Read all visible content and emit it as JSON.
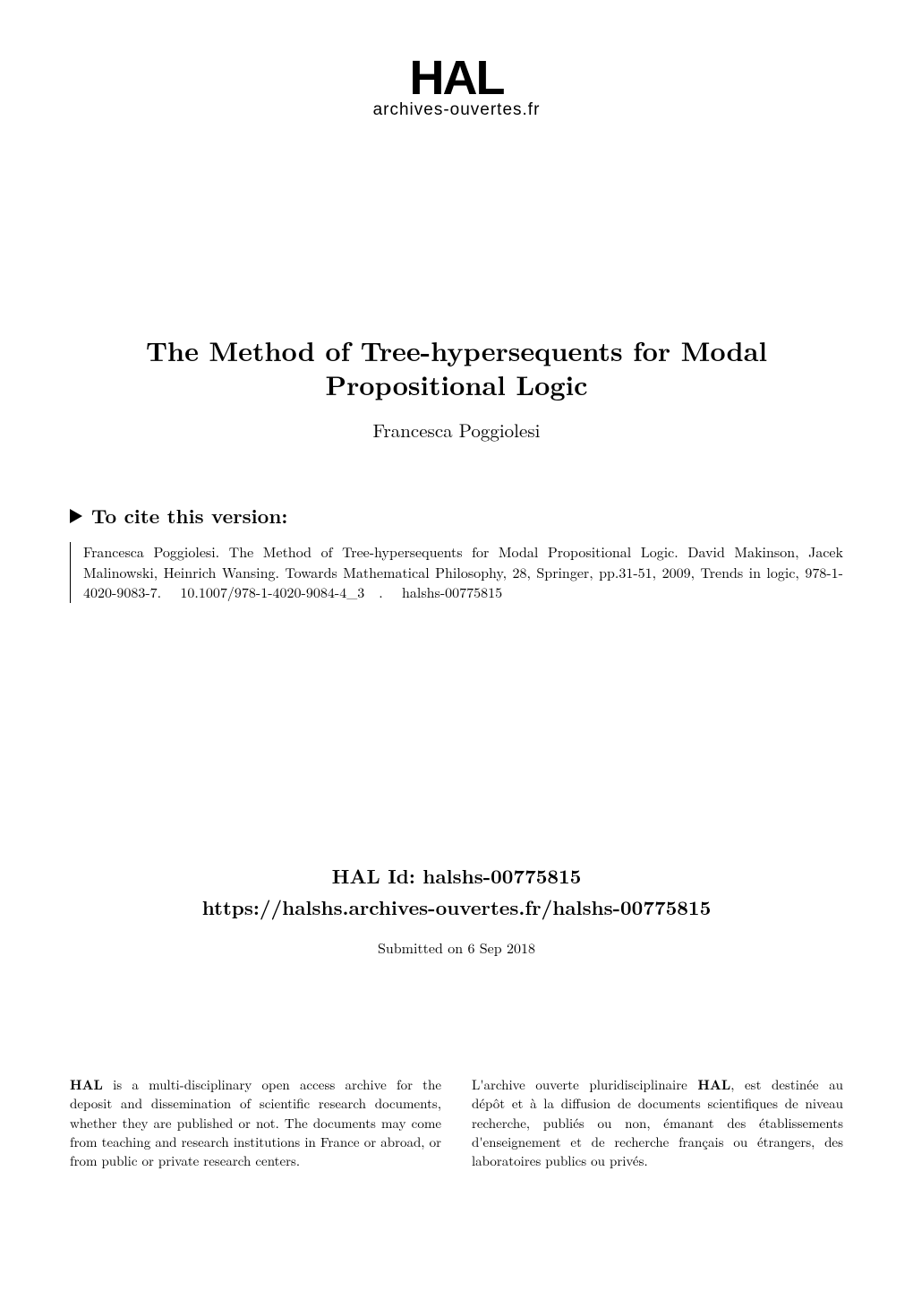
{
  "logo": {
    "text": "HAL",
    "subtitle": "archives-ouvertes.fr"
  },
  "title": "The Method of Tree-hypersequents for Modal Propositional Logic",
  "author": "Francesca Poggiolesi",
  "cite": {
    "heading": "To cite this version:",
    "body": "Francesca Poggiolesi. The Method of Tree-hypersequents for Modal Propositional Logic. David Makinson, Jacek Malinowski, Heinrich Wansing. Towards Mathematical Philosophy, 28, Springer, pp.31-51, 2009, Trends in logic, 978-1-4020-9083-7.  10.1007/978-1-4020-9084-4_3 .  halshs-00775815 "
  },
  "halid": {
    "line1": "HAL Id: halshs-00775815",
    "line2": "https://halshs.archives-ouvertes.fr/halshs-00775815",
    "submitted": "Submitted on 6 Sep 2018"
  },
  "desc": {
    "left_html": "<b>HAL</b> is a multi-disciplinary open access archive for the deposit and dissemination of scientific research documents, whether they are published or not.  The documents may come from teaching and research institutions in France or abroad, or from public or private research centers.",
    "right_html": "L'archive ouverte pluridisciplinaire <b>HAL</b>, est destinée au dépôt et à la diffusion de documents scientifiques de niveau recherche, publiés ou non, émanant des établissements d'enseignement et de recherche français ou étrangers, des laboratoires publics ou privés."
  }
}
